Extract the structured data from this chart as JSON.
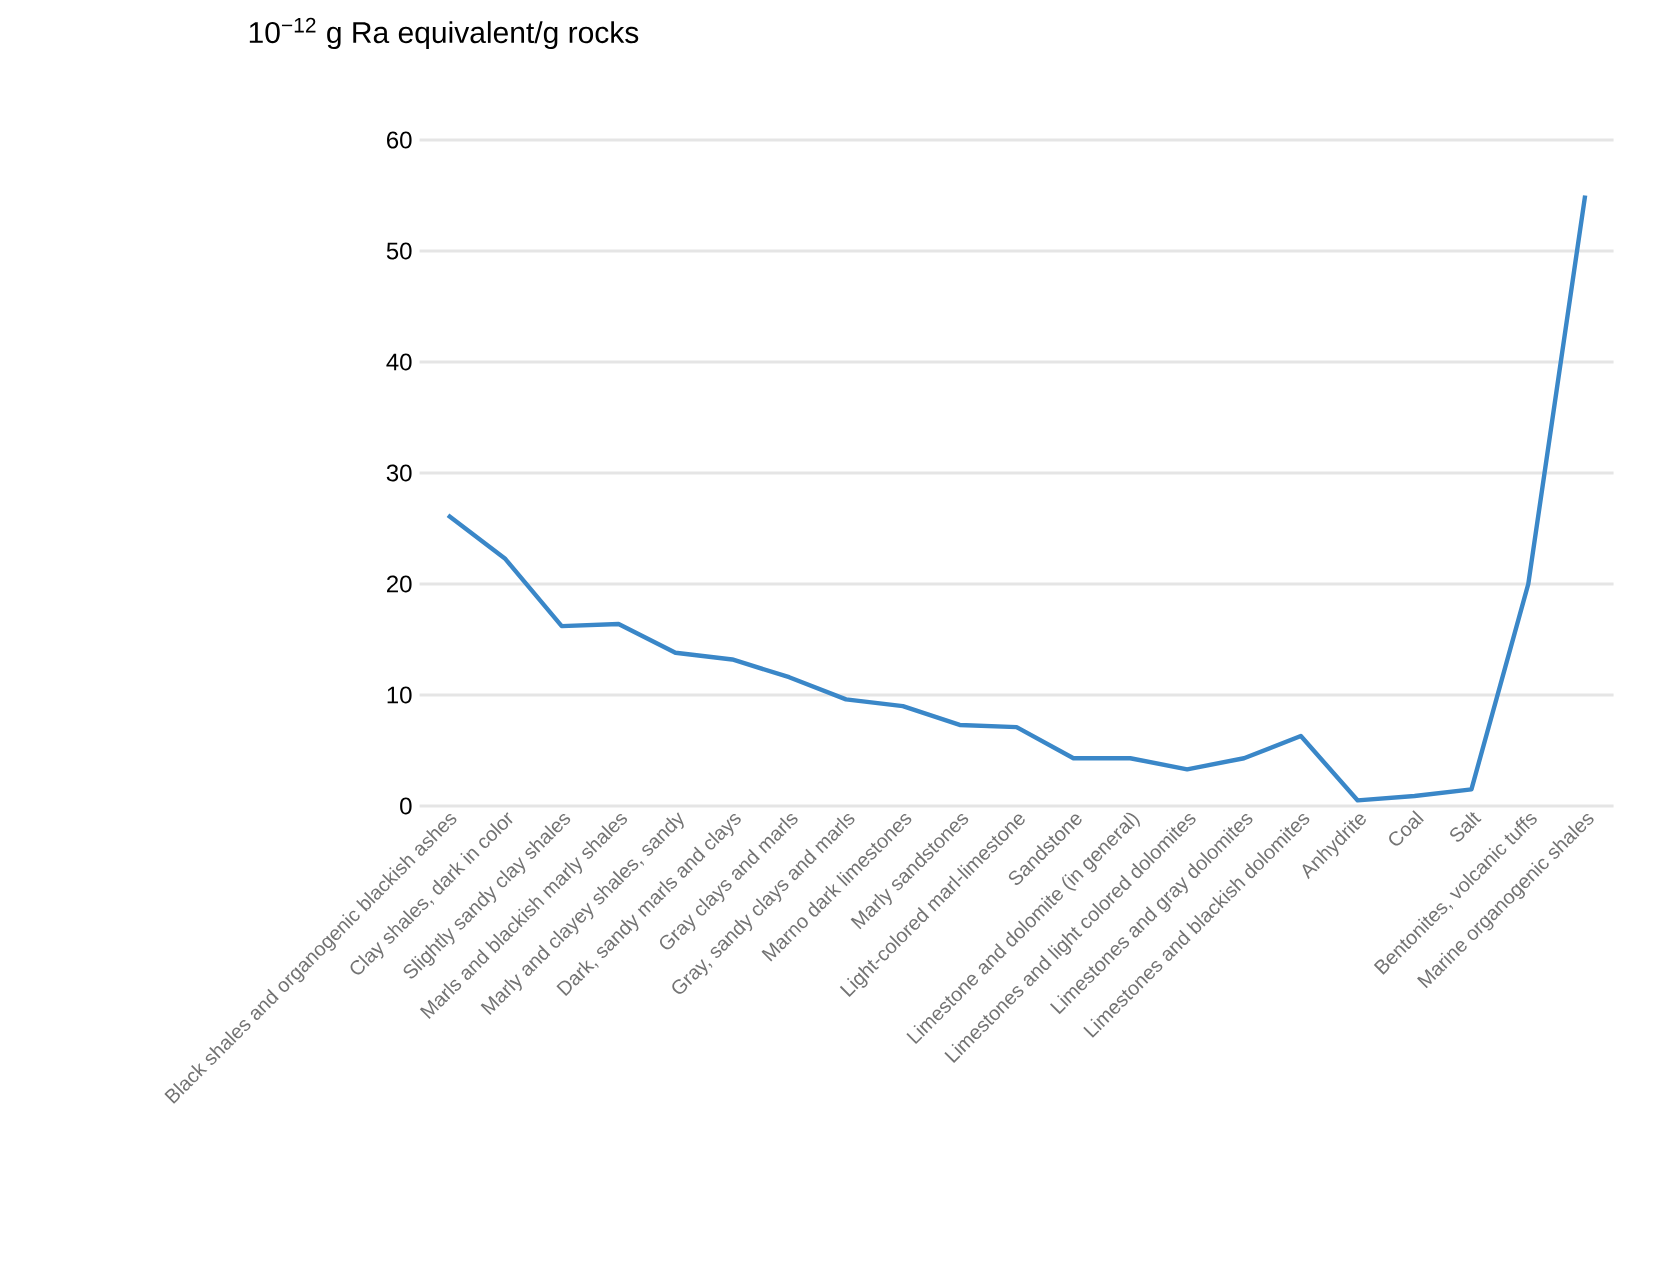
{
  "chart_data": {
    "type": "line",
    "ylabel": "10$^{−12}$ g Ra equivalent/g rocks",
    "categories": [
      "Black shales and organogenic blackish ashes",
      "Clay shales, dark in color",
      "Slightly sandy clay shales",
      "Marls and blackish marly shales",
      "Marly and clayey shales, sandy",
      "Dark, sandy marls and clays",
      "Gray clays and marls",
      "Gray, sandy clays and marls",
      "Marno dark limestones",
      "Marly sandstones",
      "Light-colored marl-limestone",
      "Sandstone",
      "Limestone and dolomite (in general)",
      "Limestones and light colored dolomites",
      "Limestones and gray dolomites",
      "Limestones and blackish dolomites",
      "Anhydrite",
      "Coal",
      "Salt",
      "Bentonites, volcanic tuffs",
      "Marine organogenic shales"
    ],
    "series": [
      {
        "color": "#3a87c8",
        "values": [
          26.2,
          22.3,
          16.2,
          16.4,
          13.8,
          13.2,
          11.6,
          9.6,
          9.0,
          7.3,
          7.1,
          4.3,
          4.3,
          3.3,
          4.3,
          6.3,
          0.5,
          0.9,
          1.5,
          20,
          55
        ]
      }
    ],
    "ylim": [
      0,
      60
    ],
    "yticks": [
      0,
      10,
      20,
      30,
      40,
      50,
      60
    ],
    "grid": "y",
    "marker": "none",
    "line_style": "solid"
  }
}
